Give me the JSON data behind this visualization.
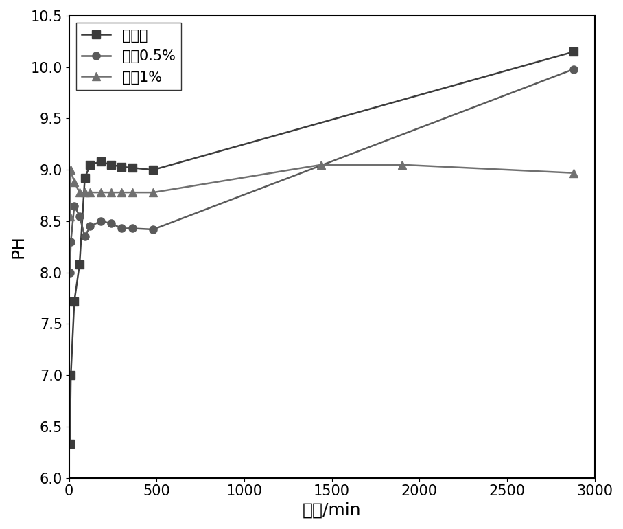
{
  "series": [
    {
      "label": "未处理",
      "x": [
        5,
        10,
        30,
        60,
        90,
        120,
        180,
        240,
        300,
        360,
        480,
        2880
      ],
      "y": [
        6.33,
        7.0,
        7.72,
        8.08,
        8.92,
        9.05,
        9.08,
        9.05,
        9.03,
        9.02,
        9.0,
        10.15
      ],
      "marker": "s",
      "color": "#3c3c3c",
      "linestyle": "-"
    },
    {
      "label": "处理0.5%",
      "x": [
        5,
        10,
        30,
        60,
        90,
        120,
        180,
        240,
        300,
        360,
        480,
        2880
      ],
      "y": [
        8.0,
        8.3,
        8.65,
        8.55,
        8.35,
        8.45,
        8.5,
        8.48,
        8.43,
        8.43,
        8.42,
        9.98
      ],
      "marker": "o",
      "color": "#5a5a5a",
      "linestyle": "-"
    },
    {
      "label": "处理1%",
      "x": [
        5,
        10,
        30,
        60,
        90,
        120,
        180,
        240,
        300,
        360,
        480,
        1440,
        1900,
        2880
      ],
      "y": [
        8.55,
        9.0,
        8.88,
        8.78,
        8.78,
        8.78,
        8.78,
        8.78,
        8.78,
        8.78,
        8.78,
        9.05,
        9.05,
        8.97
      ],
      "marker": "^",
      "color": "#707070",
      "linestyle": "-"
    }
  ],
  "xlabel": "时间/min",
  "ylabel": "PH",
  "xlim": [
    0,
    3000
  ],
  "ylim": [
    6.0,
    10.5
  ],
  "xticks": [
    0,
    500,
    1000,
    1500,
    2000,
    2500,
    3000
  ],
  "yticks": [
    6.0,
    6.5,
    7.0,
    7.5,
    8.0,
    8.5,
    9.0,
    9.5,
    10.0,
    10.5
  ],
  "background_color": "#ffffff",
  "linewidth": 1.8,
  "markersize": 8,
  "legend_loc": "upper left",
  "font_size": 15,
  "axis_label_fontsize": 18
}
